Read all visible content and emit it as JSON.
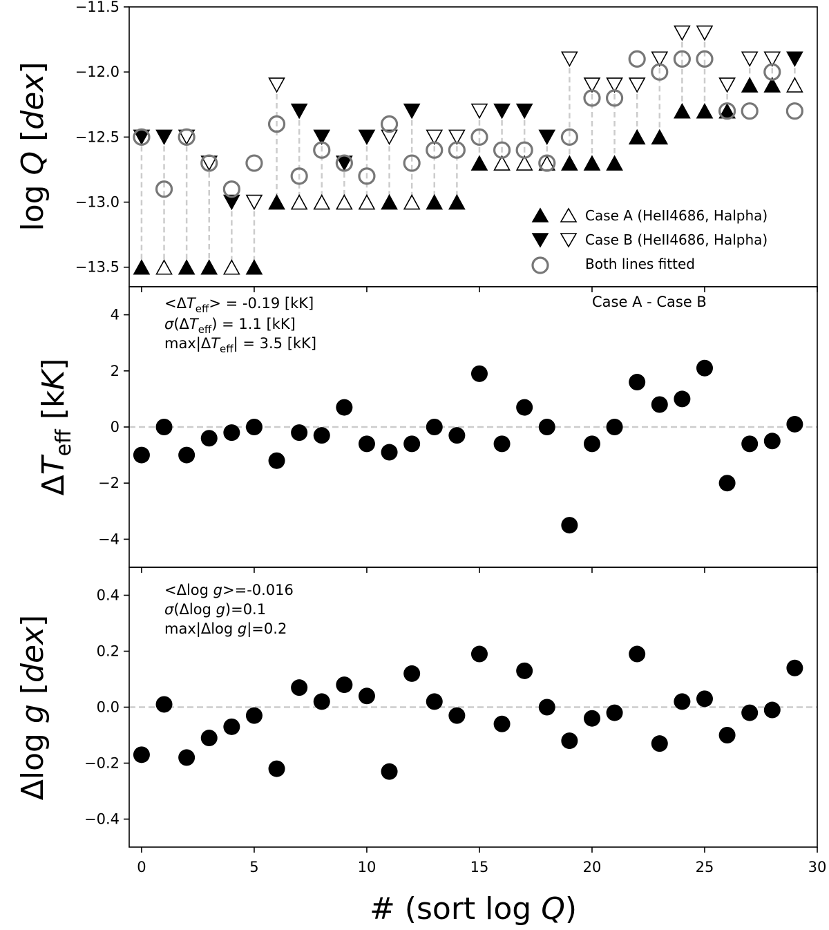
{
  "chart_data": [
    {
      "type": "scatter",
      "panel": "top",
      "ylabel": "log Q [dex]",
      "ylim": [
        -13.65,
        -11.5
      ],
      "yticks": [
        -13.5,
        -13.0,
        -12.5,
        -12.0,
        -11.5
      ],
      "ytick_labels": [
        "−13.5",
        "−13.0",
        "−12.5",
        "−12.0",
        "−11.5"
      ],
      "x": [
        0,
        1,
        2,
        3,
        4,
        5,
        6,
        7,
        8,
        9,
        10,
        11,
        12,
        13,
        14,
        15,
        16,
        17,
        18,
        19,
        20,
        21,
        22,
        23,
        24,
        25,
        26,
        27,
        28,
        29
      ],
      "series": [
        {
          "name": "Case A",
          "marker": "triangle-up",
          "values": [
            -13.5,
            -13.5,
            -13.5,
            -13.5,
            -13.5,
            -13.5,
            -13.0,
            -13.0,
            -13.0,
            -13.0,
            -13.0,
            -13.0,
            -13.0,
            -13.0,
            -13.0,
            -12.7,
            -12.7,
            -12.7,
            -12.7,
            -12.7,
            -12.7,
            -12.7,
            -12.5,
            -12.5,
            -12.3,
            -12.3,
            -12.3,
            -12.1,
            -12.1,
            -12.1
          ],
          "filled": [
            1,
            0,
            1,
            1,
            0,
            1,
            1,
            0,
            0,
            0,
            0,
            1,
            0,
            1,
            1,
            1,
            0,
            0,
            0,
            1,
            1,
            1,
            1,
            1,
            1,
            1,
            1,
            1,
            1,
            0
          ]
        },
        {
          "name": "Case B",
          "marker": "triangle-down",
          "values": [
            -12.5,
            -12.5,
            -12.5,
            -12.7,
            -13.0,
            -13.0,
            -12.1,
            -12.3,
            -12.5,
            -12.7,
            -12.5,
            -12.5,
            -12.3,
            -12.5,
            -12.5,
            -12.3,
            -12.3,
            -12.3,
            -12.5,
            -11.9,
            -12.1,
            -12.1,
            -12.1,
            -11.9,
            -11.7,
            -11.7,
            -12.1,
            -11.9,
            -11.9,
            -11.9
          ],
          "filled": [
            1,
            1,
            0,
            0,
            1,
            0,
            0,
            1,
            1,
            1,
            1,
            0,
            1,
            0,
            0,
            0,
            1,
            1,
            1,
            0,
            0,
            0,
            0,
            0,
            0,
            0,
            0,
            0,
            0,
            1
          ]
        },
        {
          "name": "Both lines fitted",
          "marker": "circle",
          "values": [
            -12.5,
            -12.9,
            -12.5,
            -12.7,
            -12.9,
            -12.7,
            -12.4,
            -12.8,
            -12.6,
            -12.7,
            -12.8,
            -12.4,
            -12.7,
            -12.6,
            -12.6,
            -12.5,
            -12.6,
            -12.6,
            -12.7,
            -12.5,
            -12.2,
            -12.2,
            -11.9,
            -12.0,
            -11.9,
            -11.9,
            -12.3,
            -12.3,
            -12.0,
            -12.3
          ]
        }
      ],
      "legend": {
        "position": "lower-right",
        "items": [
          {
            "label": "Case A (HeII4686, Halpha)"
          },
          {
            "label": "Case B (HeII4686, Halpha)"
          },
          {
            "label": "Both lines fitted"
          }
        ]
      }
    },
    {
      "type": "scatter",
      "panel": "middle",
      "ylabel": "ΔT_eff [kK]",
      "ylim": [
        -5.0,
        5.0
      ],
      "yticks": [
        -4,
        -2,
        0,
        2,
        4
      ],
      "ytick_labels": [
        "−4",
        "−2",
        "0",
        "2",
        "4"
      ],
      "x": [
        0,
        1,
        2,
        3,
        4,
        5,
        6,
        7,
        8,
        9,
        10,
        11,
        12,
        13,
        14,
        15,
        16,
        17,
        18,
        19,
        20,
        21,
        22,
        23,
        24,
        25,
        26,
        27,
        28,
        29
      ],
      "values": [
        -1.0,
        0.0,
        -1.0,
        -0.4,
        -0.2,
        0.0,
        -1.2,
        -0.2,
        -0.3,
        0.7,
        -0.6,
        -0.9,
        -0.6,
        0.0,
        -0.3,
        1.9,
        -0.6,
        0.7,
        0.0,
        -3.5,
        -0.6,
        0.0,
        1.6,
        0.8,
        1.0,
        2.1,
        -2.0,
        -0.6,
        -0.5,
        0.1
      ],
      "hline": 0,
      "title_right": "Case A - Case B",
      "annotations": [
        "<ΔT_eff> = -0.19 [kK]",
        "σ(ΔT_eff) = 1.1 [kK]",
        "max|ΔT_eff| = 3.5 [kK]"
      ]
    },
    {
      "type": "scatter",
      "panel": "bottom",
      "ylabel": "Δlog g [dex]",
      "ylim": [
        -0.5,
        0.5
      ],
      "yticks": [
        -0.4,
        -0.2,
        0.0,
        0.2,
        0.4
      ],
      "ytick_labels": [
        "−0.4",
        "−0.2",
        "0.0",
        "0.2",
        "0.4"
      ],
      "x": [
        0,
        1,
        2,
        3,
        4,
        5,
        6,
        7,
        8,
        9,
        10,
        11,
        12,
        13,
        14,
        15,
        16,
        17,
        18,
        19,
        20,
        21,
        22,
        23,
        24,
        25,
        26,
        27,
        28,
        29
      ],
      "values": [
        -0.17,
        0.01,
        -0.18,
        -0.11,
        -0.07,
        -0.03,
        -0.22,
        0.07,
        0.02,
        0.08,
        0.04,
        -0.23,
        0.12,
        0.02,
        -0.03,
        0.19,
        -0.06,
        0.13,
        0.0,
        -0.12,
        -0.04,
        -0.02,
        0.19,
        -0.13,
        0.02,
        0.03,
        -0.1,
        -0.02,
        -0.01,
        0.14
      ],
      "hline": 0,
      "annotations": [
        "<Δlog g>=-0.016",
        "σ(Δlog g)=0.1",
        "max|Δlog g|=0.2"
      ]
    }
  ],
  "xaxis": {
    "label": "# (sort log Q)",
    "xlim": [
      -0.55,
      30.0
    ],
    "ticks": [
      0,
      5,
      10,
      15,
      20,
      25,
      30
    ],
    "tick_labels": [
      "0",
      "5",
      "10",
      "15",
      "20",
      "25",
      "30"
    ]
  }
}
